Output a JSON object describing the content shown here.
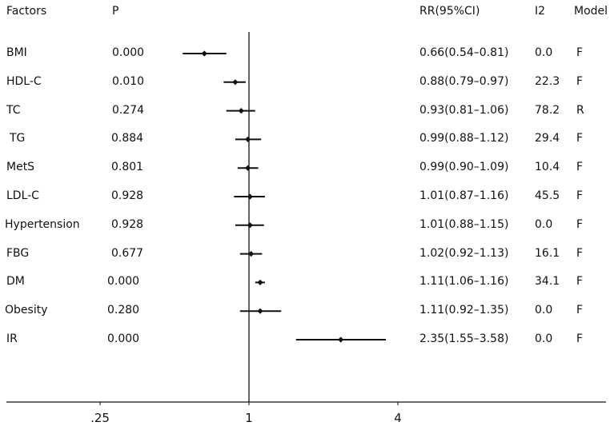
{
  "headers": {
    "factors": "Factors",
    "p": "P",
    "rr": "RR(95%CI)",
    "i2": "I2",
    "model": "Model"
  },
  "chart_data": {
    "type": "forest",
    "x_scale": "log2",
    "xlim": [
      0.25,
      4
    ],
    "xticks": [
      ".25",
      "1",
      "4"
    ],
    "reference_line": 1,
    "rows": [
      {
        "factor": "BMI",
        "p": "0.000",
        "rr": 0.66,
        "lo": 0.54,
        "hi": 0.81,
        "rr_text": "0.66(0.54–0.81)",
        "i2": "0.0",
        "model": "F"
      },
      {
        "factor": "HDL-C",
        "p": "0.010",
        "rr": 0.88,
        "lo": 0.79,
        "hi": 0.97,
        "rr_text": "0.88(0.79–0.97)",
        "i2": "22.3",
        "model": "F"
      },
      {
        "factor": "TC",
        "p": "0.274",
        "rr": 0.93,
        "lo": 0.81,
        "hi": 1.06,
        "rr_text": "0.93(0.81–1.06)",
        "i2": "78.2",
        "model": "R"
      },
      {
        "factor": "TG",
        "p": "0.884",
        "rr": 0.99,
        "lo": 0.88,
        "hi": 1.12,
        "rr_text": "0.99(0.88–1.12)",
        "i2": "29.4",
        "model": "F"
      },
      {
        "factor": "MetS",
        "p": "0.801",
        "rr": 0.99,
        "lo": 0.9,
        "hi": 1.09,
        "rr_text": "0.99(0.90–1.09)",
        "i2": "10.4",
        "model": "F"
      },
      {
        "factor": "LDL-C",
        "p": "0.928",
        "rr": 1.01,
        "lo": 0.87,
        "hi": 1.16,
        "rr_text": "1.01(0.87–1.16)",
        "i2": "45.5",
        "model": "F"
      },
      {
        "factor": "Hypertension",
        "p": "0.928",
        "rr": 1.01,
        "lo": 0.88,
        "hi": 1.15,
        "rr_text": "1.01(0.88–1.15)",
        "i2": "0.0",
        "model": "F"
      },
      {
        "factor": "FBG",
        "p": "0.677",
        "rr": 1.02,
        "lo": 0.92,
        "hi": 1.13,
        "rr_text": "1.02(0.92–1.13)",
        "i2": "16.1",
        "model": "F"
      },
      {
        "factor": "DM",
        "p": "0.000",
        "rr": 1.11,
        "lo": 1.06,
        "hi": 1.16,
        "rr_text": "1.11(1.06–1.16)",
        "i2": "34.1",
        "model": "F"
      },
      {
        "factor": "Obesity",
        "p": "0.280",
        "rr": 1.11,
        "lo": 0.92,
        "hi": 1.35,
        "rr_text": "1.11(0.92–1.35)",
        "i2": "0.0",
        "model": "F"
      },
      {
        "factor": "IR",
        "p": "0.000",
        "rr": 2.35,
        "lo": 1.55,
        "hi": 3.58,
        "rr_text": "2.35(1.55–3.58)",
        "i2": "0.0",
        "model": "F"
      }
    ]
  }
}
